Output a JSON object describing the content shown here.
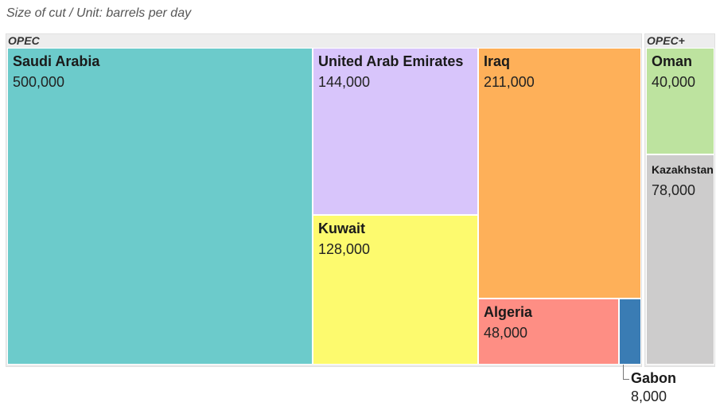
{
  "subtitle": "Size of cut / Unit: barrels per day",
  "chart_data": {
    "type": "treemap",
    "subtitle": "Size of cut / Unit: barrels per day",
    "unit": "barrels per day",
    "groups": [
      {
        "name": "OPEC",
        "items": [
          {
            "name": "Saudi Arabia",
            "value": 500000,
            "label": "500,000",
            "color": "#6ccbcb"
          },
          {
            "name": "United Arab Emirates",
            "value": 144000,
            "label": "144,000",
            "color": "#d8c5fb"
          },
          {
            "name": "Kuwait",
            "value": 128000,
            "label": "128,000",
            "color": "#fdfa6e"
          },
          {
            "name": "Iraq",
            "value": 211000,
            "label": "211,000",
            "color": "#feb059"
          },
          {
            "name": "Algeria",
            "value": 48000,
            "label": "48,000",
            "color": "#fe8e84"
          },
          {
            "name": "Gabon",
            "value": 8000,
            "label": "8,000",
            "color": "#3a7cb4"
          }
        ]
      },
      {
        "name": "OPEC+",
        "items": [
          {
            "name": "Oman",
            "value": 40000,
            "label": "40,000",
            "color": "#bde39f"
          },
          {
            "name": "Kazakhstan",
            "value": 78000,
            "label": "78,000",
            "color": "#cdcccc"
          }
        ]
      }
    ]
  }
}
